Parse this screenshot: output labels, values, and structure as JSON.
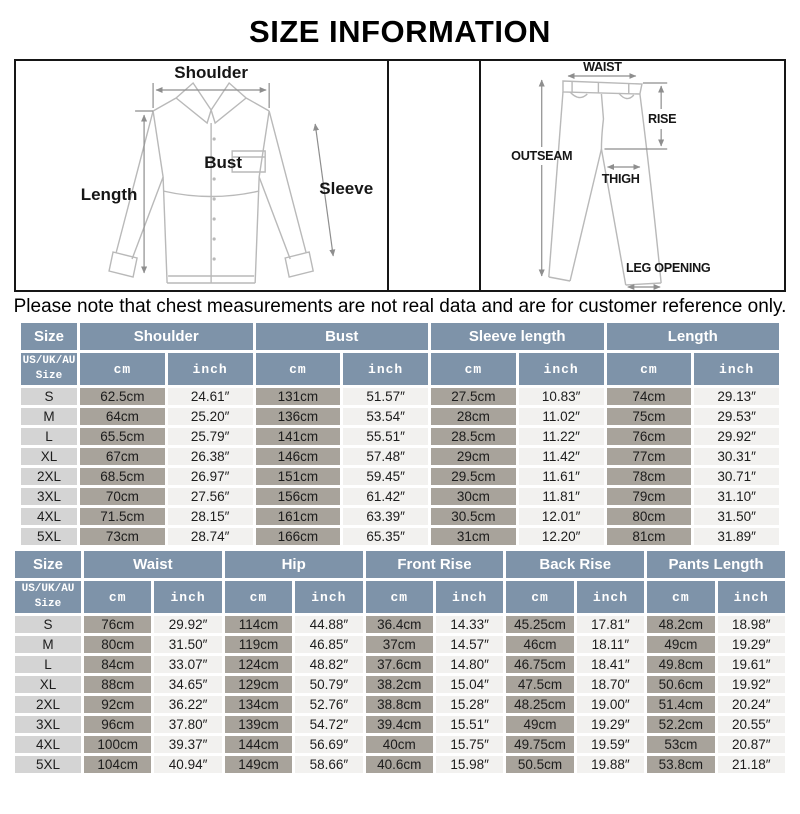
{
  "title": "SIZE INFORMATION",
  "note": "Please note that chest measurements are not real data and are for customer reference only.",
  "diagrams": {
    "shirt": {
      "shoulder": "Shoulder",
      "length": "Length",
      "bust": "Bust",
      "sleeve": "Sleeve"
    },
    "pants": {
      "waist": "WAIST",
      "rise": "RISE",
      "outseam": "OUTSEAM",
      "thigh": "THIGH",
      "leg_opening": "LEG OPENING"
    }
  },
  "colors": {
    "header_blue": "#7e93a9",
    "cm_cell_gray": "#a8a39b",
    "size_cell_gray": "#d4d4d4",
    "inch_cell_light": "#f2f1ef"
  },
  "tables": [
    {
      "size_header": "Size",
      "size_subheader": "US/UK/AU\nSize",
      "unit_headers": [
        "cm",
        "inch"
      ],
      "groups": [
        "Shoulder",
        "Bust",
        "Sleeve length",
        "Length"
      ],
      "rows": [
        {
          "size": "S",
          "values": [
            "62.5cm",
            "24.61″",
            "131cm",
            "51.57″",
            "27.5cm",
            "10.83″",
            "74cm",
            "29.13″"
          ]
        },
        {
          "size": "M",
          "values": [
            "64cm",
            "25.20″",
            "136cm",
            "53.54″",
            "28cm",
            "11.02″",
            "75cm",
            "29.53″"
          ]
        },
        {
          "size": "L",
          "values": [
            "65.5cm",
            "25.79″",
            "141cm",
            "55.51″",
            "28.5cm",
            "11.22″",
            "76cm",
            "29.92″"
          ]
        },
        {
          "size": "XL",
          "values": [
            "67cm",
            "26.38″",
            "146cm",
            "57.48″",
            "29cm",
            "11.42″",
            "77cm",
            "30.31″"
          ]
        },
        {
          "size": "2XL",
          "values": [
            "68.5cm",
            "26.97″",
            "151cm",
            "59.45″",
            "29.5cm",
            "11.61″",
            "78cm",
            "30.71″"
          ]
        },
        {
          "size": "3XL",
          "values": [
            "70cm",
            "27.56″",
            "156cm",
            "61.42″",
            "30cm",
            "11.81″",
            "79cm",
            "31.10″"
          ]
        },
        {
          "size": "4XL",
          "values": [
            "71.5cm",
            "28.15″",
            "161cm",
            "63.39″",
            "30.5cm",
            "12.01″",
            "80cm",
            "31.50″"
          ]
        },
        {
          "size": "5XL",
          "values": [
            "73cm",
            "28.74″",
            "166cm",
            "65.35″",
            "31cm",
            "12.20″",
            "81cm",
            "31.89″"
          ]
        }
      ]
    },
    {
      "size_header": "Size",
      "size_subheader": "US/UK/AU\nSize",
      "unit_headers": [
        "cm",
        "inch"
      ],
      "groups": [
        "Waist",
        "Hip",
        "Front Rise",
        "Back Rise",
        "Pants Length"
      ],
      "rows": [
        {
          "size": "S",
          "values": [
            "76cm",
            "29.92″",
            "114cm",
            "44.88″",
            "36.4cm",
            "14.33″",
            "45.25cm",
            "17.81″",
            "48.2cm",
            "18.98″"
          ]
        },
        {
          "size": "M",
          "values": [
            "80cm",
            "31.50″",
            "119cm",
            "46.85″",
            "37cm",
            "14.57″",
            "46cm",
            "18.11″",
            "49cm",
            "19.29″"
          ]
        },
        {
          "size": "L",
          "values": [
            "84cm",
            "33.07″",
            "124cm",
            "48.82″",
            "37.6cm",
            "14.80″",
            "46.75cm",
            "18.41″",
            "49.8cm",
            "19.61″"
          ]
        },
        {
          "size": "XL",
          "values": [
            "88cm",
            "34.65″",
            "129cm",
            "50.79″",
            "38.2cm",
            "15.04″",
            "47.5cm",
            "18.70″",
            "50.6cm",
            "19.92″"
          ]
        },
        {
          "size": "2XL",
          "values": [
            "92cm",
            "36.22″",
            "134cm",
            "52.76″",
            "38.8cm",
            "15.28″",
            "48.25cm",
            "19.00″",
            "51.4cm",
            "20.24″"
          ]
        },
        {
          "size": "3XL",
          "values": [
            "96cm",
            "37.80″",
            "139cm",
            "54.72″",
            "39.4cm",
            "15.51″",
            "49cm",
            "19.29″",
            "52.2cm",
            "20.55″"
          ]
        },
        {
          "size": "4XL",
          "values": [
            "100cm",
            "39.37″",
            "144cm",
            "56.69″",
            "40cm",
            "15.75″",
            "49.75cm",
            "19.59″",
            "53cm",
            "20.87″"
          ]
        },
        {
          "size": "5XL",
          "values": [
            "104cm",
            "40.94″",
            "149cm",
            "58.66″",
            "40.6cm",
            "15.98″",
            "50.5cm",
            "19.88″",
            "53.8cm",
            "21.18″"
          ]
        }
      ]
    }
  ]
}
